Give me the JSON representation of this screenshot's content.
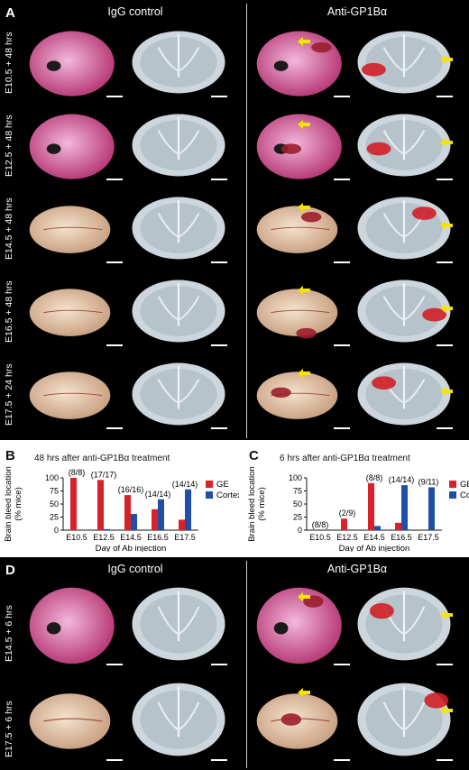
{
  "panel_a": {
    "label": "A",
    "col_left": "IgG control",
    "col_right": "Anti-GP1Bα",
    "rows": [
      "E10.5 + 48 hrs",
      "E12.5 + 48 hrs",
      "E14.5 + 48 hrs",
      "E16.5 + 48 hrs",
      "E17.5 + 24 hrs"
    ]
  },
  "panel_d": {
    "label": "D",
    "col_left": "IgG control",
    "col_right": "Anti-GP1Bα",
    "rows": [
      "E14.5 + 6 hrs",
      "E17.5 + 6 hrs"
    ]
  },
  "colors": {
    "ge": "#d7222a",
    "cortex": "#1f4fa6",
    "arrow": "#f5e400"
  },
  "chart_data": [
    {
      "panel": "B",
      "type": "bar",
      "title": "48 hrs after anti-GP1Bα treatment",
      "xlabel": "Day of Ab injection",
      "ylabel": "Brain bleed location\n(% mice)",
      "ylim": [
        0,
        100
      ],
      "yticks": [
        0,
        25,
        50,
        75,
        100
      ],
      "categories": [
        "E10.5",
        "E12.5",
        "E14.5",
        "E16.5",
        "E17.5"
      ],
      "annotations": [
        "(8/8)",
        "(17/17)",
        "(16/16)",
        "(14/14)",
        "(14/14)"
      ],
      "series": [
        {
          "name": "GE",
          "values": [
            100,
            96,
            67,
            40,
            20
          ]
        },
        {
          "name": "Cortex",
          "values": [
            0,
            2,
            31,
            59,
            78
          ]
        }
      ],
      "legend": "right"
    },
    {
      "panel": "C",
      "type": "bar",
      "title": "6 hrs after anti-GP1Bα treatment",
      "xlabel": "Day of Ab injection",
      "ylabel": "Brain bleed location\n(% mice)",
      "ylim": [
        0,
        100
      ],
      "yticks": [
        0,
        25,
        50,
        75,
        100
      ],
      "categories": [
        "E10.5",
        "E12.5",
        "E14.5",
        "E16.5",
        "E17.5"
      ],
      "annotations": [
        "(8/8)",
        "(2/9)",
        "(8/8)",
        "(14/14)",
        "(9/11)"
      ],
      "series": [
        {
          "name": "GE",
          "values": [
            0,
            22,
            90,
            14,
            0
          ]
        },
        {
          "name": "Cortex",
          "values": [
            0,
            0,
            8,
            86,
            82
          ]
        }
      ],
      "legend": "right"
    }
  ]
}
